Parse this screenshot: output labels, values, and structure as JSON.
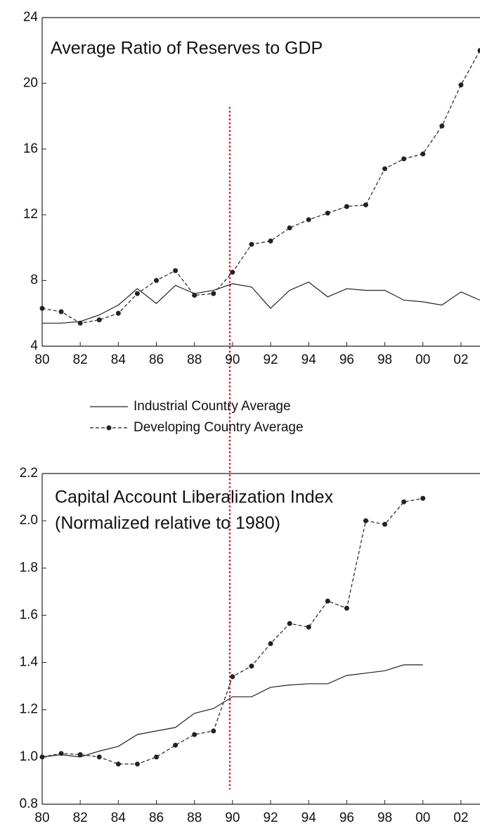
{
  "chart_data": [
    {
      "type": "line",
      "title": "Average Ratio of Reserves to GDP",
      "x": [
        1980,
        1981,
        1982,
        1983,
        1984,
        1985,
        1986,
        1987,
        1988,
        1989,
        1990,
        1991,
        1992,
        1993,
        1994,
        1995,
        1996,
        1997,
        1998,
        1999,
        2000,
        2001,
        2002,
        2003
      ],
      "series": [
        {
          "name": "Industrial Country Average",
          "color": "#222222",
          "line_style": "solid",
          "marker": "none",
          "values": [
            5.4,
            5.4,
            5.5,
            5.9,
            6.5,
            7.5,
            6.6,
            7.7,
            7.2,
            7.4,
            7.8,
            7.6,
            6.3,
            7.4,
            7.9,
            7.0,
            7.5,
            7.4,
            7.4,
            6.8,
            6.7,
            6.5,
            7.3,
            6.8
          ]
        },
        {
          "name": "Developing Country Average",
          "color": "#222222",
          "line_style": "dashed",
          "marker": "circle",
          "values": [
            6.3,
            6.1,
            5.4,
            5.6,
            6.0,
            7.2,
            8.0,
            8.6,
            7.1,
            7.2,
            8.5,
            10.2,
            10.4,
            11.2,
            11.7,
            12.1,
            12.5,
            12.6,
            14.8,
            15.4,
            15.7,
            17.4,
            19.9,
            22.0
          ]
        }
      ],
      "xlim": [
        1980,
        2003
      ],
      "ylim": [
        4,
        24
      ],
      "xticks": [
        {
          "value": 1980,
          "label": "80"
        },
        {
          "value": 1982,
          "label": "82"
        },
        {
          "value": 1984,
          "label": "84"
        },
        {
          "value": 1986,
          "label": "86"
        },
        {
          "value": 1988,
          "label": "88"
        },
        {
          "value": 1990,
          "label": "90"
        },
        {
          "value": 1992,
          "label": "92"
        },
        {
          "value": 1994,
          "label": "94"
        },
        {
          "value": 1996,
          "label": "96"
        },
        {
          "value": 1998,
          "label": "98"
        },
        {
          "value": 2000,
          "label": "00"
        },
        {
          "value": 2002,
          "label": "02"
        }
      ],
      "yticks": [
        4,
        8,
        12,
        16,
        20,
        24
      ],
      "grid": false
    },
    {
      "type": "line",
      "title": "Capital Account Liberalization Index",
      "subtitle": "(Normalized relative to 1980)",
      "x": [
        1980,
        1981,
        1982,
        1983,
        1984,
        1985,
        1986,
        1987,
        1988,
        1989,
        1990,
        1991,
        1992,
        1993,
        1994,
        1995,
        1996,
        1997,
        1998,
        1999,
        2000
      ],
      "series": [
        {
          "color": "#222222",
          "line_style": "solid",
          "marker": "none",
          "values": [
            1.0,
            1.01,
            1.0,
            1.025,
            1.045,
            1.095,
            1.11,
            1.125,
            1.185,
            1.205,
            1.255,
            1.255,
            1.295,
            1.305,
            1.31,
            1.31,
            1.345,
            1.355,
            1.365,
            1.39,
            1.39
          ]
        },
        {
          "color": "#222222",
          "line_style": "dashed",
          "marker": "circle",
          "values": [
            1.0,
            1.015,
            1.01,
            1.0,
            0.97,
            0.97,
            1.0,
            1.05,
            1.095,
            1.11,
            1.34,
            1.385,
            1.48,
            1.565,
            1.55,
            1.66,
            1.63,
            2.0,
            1.985,
            2.08,
            2.095
          ]
        }
      ],
      "xlim": [
        1980,
        2003
      ],
      "ylim": [
        0.8,
        2.2
      ],
      "xticks": [
        {
          "value": 1980,
          "label": "80"
        },
        {
          "value": 1982,
          "label": "82"
        },
        {
          "value": 1984,
          "label": "84"
        },
        {
          "value": 1986,
          "label": "86"
        },
        {
          "value": 1988,
          "label": "88"
        },
        {
          "value": 1990,
          "label": "90"
        },
        {
          "value": 1992,
          "label": "92"
        },
        {
          "value": 1994,
          "label": "94"
        },
        {
          "value": 1996,
          "label": "96"
        },
        {
          "value": 1998,
          "label": "98"
        },
        {
          "value": 2000,
          "label": "00"
        },
        {
          "value": 2002,
          "label": "02"
        }
      ],
      "yticks": [
        0.8,
        {
          "value": 1,
          "label": "1.0"
        },
        1.2,
        1.4,
        1.6,
        1.8,
        {
          "value": 2,
          "label": "2.0"
        },
        2.2
      ],
      "grid": false
    }
  ]
}
